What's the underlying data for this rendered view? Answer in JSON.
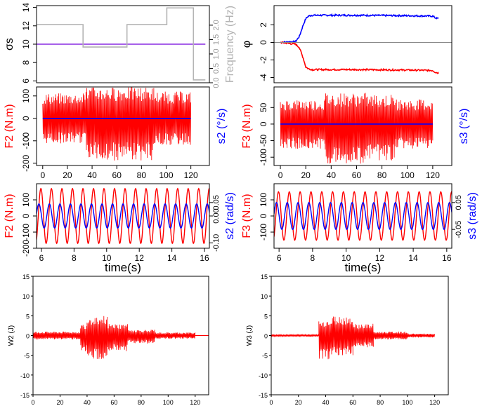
{
  "colors": {
    "red": "#ff0000",
    "blue": "#0000ff",
    "gray": "#b4b4b4",
    "purple": "#8a2be2",
    "black": "#000000",
    "zero": "#888888"
  },
  "chart_data": [
    {
      "id": "p1",
      "type": "line",
      "ylabel": "σs",
      "ylabel_right": "Frequency (Hz)",
      "xlim": [
        0,
        130
      ],
      "ylim": [
        5.8,
        14.2
      ],
      "yticks": [
        6,
        8,
        10,
        12,
        14
      ],
      "xticks": [],
      "ylim_right": [
        0,
        2.68
      ],
      "yticks_right": [
        "0.0",
        "0.5",
        "1.0",
        "1.5",
        "2.0"
      ],
      "yticks_right_values": [
        0,
        0.5,
        1.0,
        1.5,
        2.0
      ],
      "series": [
        {
          "name": "sigma_s",
          "color": "purple",
          "x": [
            0,
            127
          ],
          "y": [
            10,
            10
          ]
        },
        {
          "name": "frequency",
          "color": "gray",
          "axis": "right",
          "x": [
            0,
            35,
            35,
            68,
            68,
            98,
            98,
            118,
            118,
            127
          ],
          "y": [
            2.02,
            2.02,
            1.24,
            1.24,
            2.02,
            2.02,
            2.6,
            2.6,
            0.1,
            0.1
          ]
        }
      ]
    },
    {
      "id": "p2",
      "type": "line",
      "ylabel": "φ",
      "xlim": [
        -5,
        135
      ],
      "ylim": [
        -4.6,
        4.2
      ],
      "yticks": [
        -4,
        -2,
        0,
        2
      ],
      "xticks": [],
      "series": [
        {
          "name": "phi_pos",
          "color": "blue",
          "x": [
            0,
            12,
            15,
            18,
            20,
            22,
            25,
            30,
            40,
            60,
            100,
            120,
            122,
            125
          ],
          "y": [
            0,
            0.1,
            0.7,
            2.0,
            2.7,
            3.0,
            3.1,
            3.1,
            3.1,
            3.1,
            3.05,
            3.0,
            2.8,
            2.7
          ]
        },
        {
          "name": "phi_neg",
          "color": "red",
          "x": [
            0,
            12,
            15,
            18,
            20,
            22,
            25,
            30,
            40,
            60,
            100,
            120,
            122,
            125
          ],
          "y": [
            0,
            -0.2,
            -0.6,
            -1.8,
            -2.8,
            -3.0,
            -3.1,
            -3.1,
            -3.1,
            -3.1,
            -3.15,
            -3.2,
            -3.4,
            -3.5
          ]
        },
        {
          "name": "zero",
          "color": "zero",
          "x": [
            -5,
            135
          ],
          "y": [
            0,
            0
          ]
        }
      ]
    },
    {
      "id": "p3",
      "type": "line",
      "ylabel": "F2 (N.m)",
      "ylabel_right": "s2 (°/s)",
      "xlim": [
        -5,
        135
      ],
      "ylim": [
        -210,
        140
      ],
      "yticks": [
        -200,
        -100,
        0,
        100
      ],
      "xticks": [
        0,
        20,
        40,
        60,
        80,
        100,
        120
      ],
      "series": [
        {
          "name": "F2",
          "color": "red",
          "kind": "oscillation",
          "segments": [
            [
              0,
              35,
              112,
              -112
            ],
            [
              35,
              68,
              140,
              -190
            ],
            [
              68,
              90,
              140,
              -190
            ],
            [
              90,
              120,
              120,
              -120
            ]
          ]
        },
        {
          "name": "s2",
          "color": "blue",
          "x": [
            0,
            120
          ],
          "y": [
            0,
            0
          ]
        }
      ]
    },
    {
      "id": "p4",
      "type": "line",
      "ylabel": "F3 (N.m)",
      "ylabel_right": "s3 (°/s)",
      "xlim": [
        -5,
        135
      ],
      "ylim": [
        -125,
        112
      ],
      "yticks": [
        -100,
        -50,
        0,
        50
      ],
      "xticks": [
        0,
        20,
        40,
        60,
        80,
        100,
        120
      ],
      "series": [
        {
          "name": "F3",
          "color": "red",
          "kind": "oscillation",
          "segments": [
            [
              0,
              35,
              75,
              -75
            ],
            [
              35,
              68,
              95,
              -120
            ],
            [
              68,
              90,
              90,
              -110
            ],
            [
              90,
              120,
              75,
              -75
            ]
          ]
        },
        {
          "name": "s3",
          "color": "blue",
          "x": [
            0,
            120
          ],
          "y": [
            0,
            0
          ]
        }
      ]
    },
    {
      "id": "p5",
      "type": "line",
      "ylabel": "F2 (N.m)",
      "ylabel_right": "s2 (rad/s)",
      "xlabel": "time(s)",
      "xlim": [
        5.7,
        16.3
      ],
      "ylim": [
        -200,
        200
      ],
      "yticks": [
        -200,
        -100,
        0,
        100
      ],
      "xticks": [
        6,
        8,
        10,
        12,
        14,
        16
      ],
      "ylim_right": [
        -0.12,
        0.12
      ],
      "yticks_right": [
        "-0.10",
        "0.00",
        "0.05"
      ],
      "yticks_right_values": [
        -0.1,
        0.0,
        0.05
      ],
      "series": [
        {
          "name": "F2",
          "color": "red",
          "kind": "sine",
          "amp": 170,
          "freq": 1.55
        },
        {
          "name": "s2",
          "color": "blue",
          "kind": "sine",
          "amp": 0.045,
          "freq": 1.55,
          "phase": 1.2,
          "axis": "right"
        }
      ]
    },
    {
      "id": "p6",
      "type": "line",
      "ylabel": "F3 (N.m)",
      "ylabel_right": "s3 (rad/s)",
      "xlabel": "time(s)",
      "xlim": [
        5.7,
        16.3
      ],
      "ylim": [
        -200,
        200
      ],
      "yticks": [
        -100,
        0,
        100
      ],
      "xticks": [
        6,
        8,
        10,
        12,
        14,
        16
      ],
      "ylim_right": [
        -0.12,
        0.12
      ],
      "yticks_right": [
        "-0.05",
        "0.05"
      ],
      "yticks_right_values": [
        -0.05,
        0.05
      ],
      "series": [
        {
          "name": "F3",
          "color": "red",
          "kind": "sine",
          "amp": 150,
          "freq": 1.55
        },
        {
          "name": "s3",
          "color": "blue",
          "kind": "sine",
          "amp": 0.05,
          "freq": 1.55,
          "phase": 1.2,
          "axis": "right"
        }
      ]
    },
    {
      "id": "p7",
      "type": "line",
      "ylabel": "W2 (J)",
      "xlim": [
        0,
        130
      ],
      "ylim": [
        -15,
        15
      ],
      "yticks": [
        -15,
        -10,
        -5,
        0,
        5,
        10,
        15
      ],
      "xticks": [
        0,
        20,
        40,
        60,
        80,
        100,
        120
      ],
      "series": [
        {
          "name": "W2",
          "color": "red",
          "kind": "oscillation",
          "segments": [
            [
              0,
              35,
              1,
              -1
            ],
            [
              35,
              40,
              3,
              -4
            ],
            [
              40,
              55,
              5,
              -6
            ],
            [
              55,
              70,
              3,
              -4
            ],
            [
              70,
              90,
              1.5,
              -2
            ],
            [
              90,
              120,
              0.8,
              -0.8
            ]
          ]
        },
        {
          "name": "zero",
          "color": "red",
          "x": [
            120,
            130
          ],
          "y": [
            0,
            0
          ]
        }
      ]
    },
    {
      "id": "p8",
      "type": "line",
      "ylabel": "W3 (J)",
      "xlim": [
        0,
        130
      ],
      "ylim": [
        -15,
        15
      ],
      "yticks": [
        -15,
        -10,
        -5,
        0,
        5,
        10,
        15
      ],
      "xticks": [
        0,
        20,
        40,
        60,
        80,
        100,
        120
      ],
      "series": [
        {
          "name": "W3",
          "color": "red",
          "kind": "oscillation",
          "segments": [
            [
              0,
              35,
              0.3,
              -0.3
            ],
            [
              35,
              45,
              4,
              -6
            ],
            [
              45,
              60,
              5,
              -5
            ],
            [
              60,
              75,
              3,
              -3
            ],
            [
              75,
              100,
              1,
              -1
            ],
            [
              100,
              120,
              0.5,
              -0.5
            ]
          ]
        }
      ]
    }
  ]
}
